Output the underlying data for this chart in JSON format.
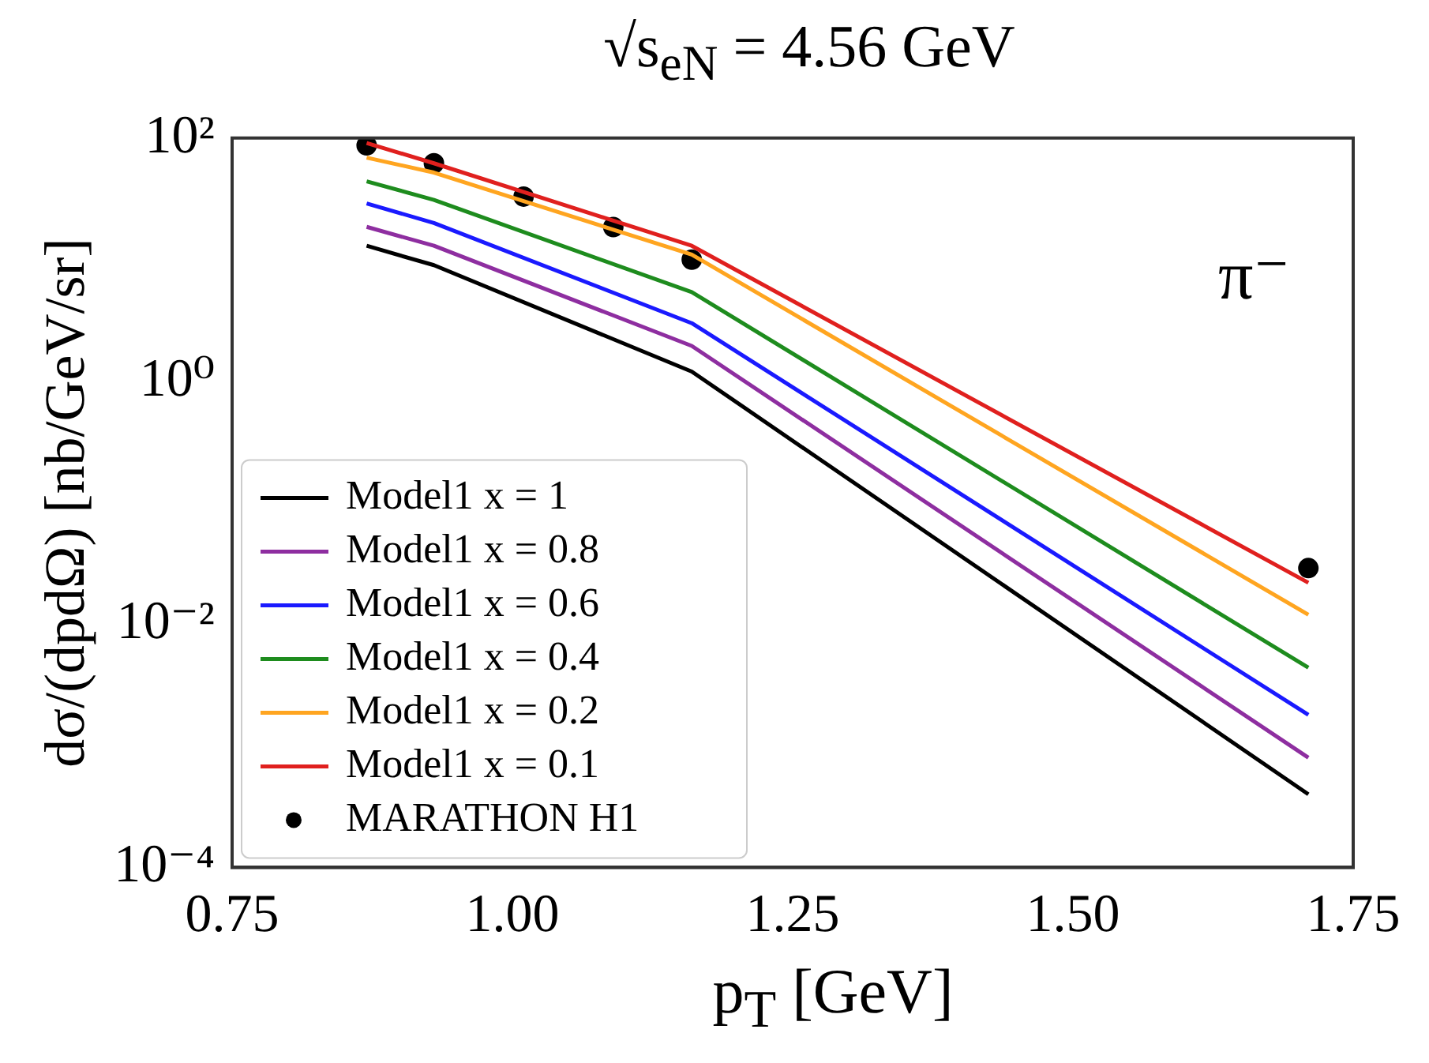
{
  "chart_data": {
    "type": "line",
    "title": "√s$_{eN}$ = 4.56 GeV",
    "xlabel": "p$_{T}$ [GeV]",
    "ylabel": "dσ/(dpdΩ) [nb/GeV/sr]",
    "annotations": [
      "π⁻"
    ],
    "xlim": [
      0.75,
      1.75
    ],
    "xticks": [
      0.75,
      {
        "value": 1,
        "label": "1.00"
      },
      1.25,
      {
        "value": 1.5,
        "label": "1.50"
      },
      1.75
    ],
    "ylim": [
      0.0001,
      100
    ],
    "yticks": [
      {
        "value": 0.0001,
        "label": "10⁻⁴"
      },
      {
        "value": 0.01,
        "label": "10⁻²"
      },
      {
        "value": 1,
        "label": "10⁰"
      },
      {
        "value": 100,
        "label": "10²"
      }
    ],
    "log": "y",
    "grid": false,
    "legend": "bottom left",
    "line_style": "solid",
    "marker": "none",
    "series": [
      {
        "name": "Model1 x = 1",
        "color": "#000000",
        "x": [
          0.87,
          0.93,
          1.16,
          1.71
        ],
        "values": [
          13,
          9,
          1.2,
          0.0004
        ]
      },
      {
        "name": "Model1 x = 0.8",
        "color": "#8e2ea0",
        "x": [
          0.87,
          0.93,
          1.16,
          1.71
        ],
        "values": [
          18.6,
          13,
          1.95,
          0.0008
        ]
      },
      {
        "name": "Model1 x = 0.6",
        "color": "#1a1aff",
        "x": [
          0.87,
          0.93,
          1.16,
          1.71
        ],
        "values": [
          29,
          20,
          3.0,
          0.0018
        ]
      },
      {
        "name": "Model1 x = 0.4",
        "color": "#1e8c1e",
        "x": [
          0.87,
          0.93,
          1.16,
          1.71
        ],
        "values": [
          44,
          31,
          5.4,
          0.0044
        ]
      },
      {
        "name": "Model1 x = 0.2",
        "color": "#ffa520",
        "x": [
          0.87,
          0.93,
          1.16,
          1.71
        ],
        "values": [
          69,
          52,
          11,
          0.012
        ]
      },
      {
        "name": "Model1 x = 0.1",
        "color": "#e0201e",
        "x": [
          0.87,
          0.93,
          1.16,
          1.71
        ],
        "values": [
          91,
          62,
          13,
          0.022
        ]
      },
      {
        "name": "MARATHON H1",
        "type": "scatter",
        "marker": "circle",
        "color": "#000000",
        "x": [
          0.87,
          0.93,
          1.01,
          1.09,
          1.16,
          1.71
        ],
        "values": [
          87,
          62,
          33,
          18.5,
          10,
          0.029
        ]
      }
    ]
  }
}
